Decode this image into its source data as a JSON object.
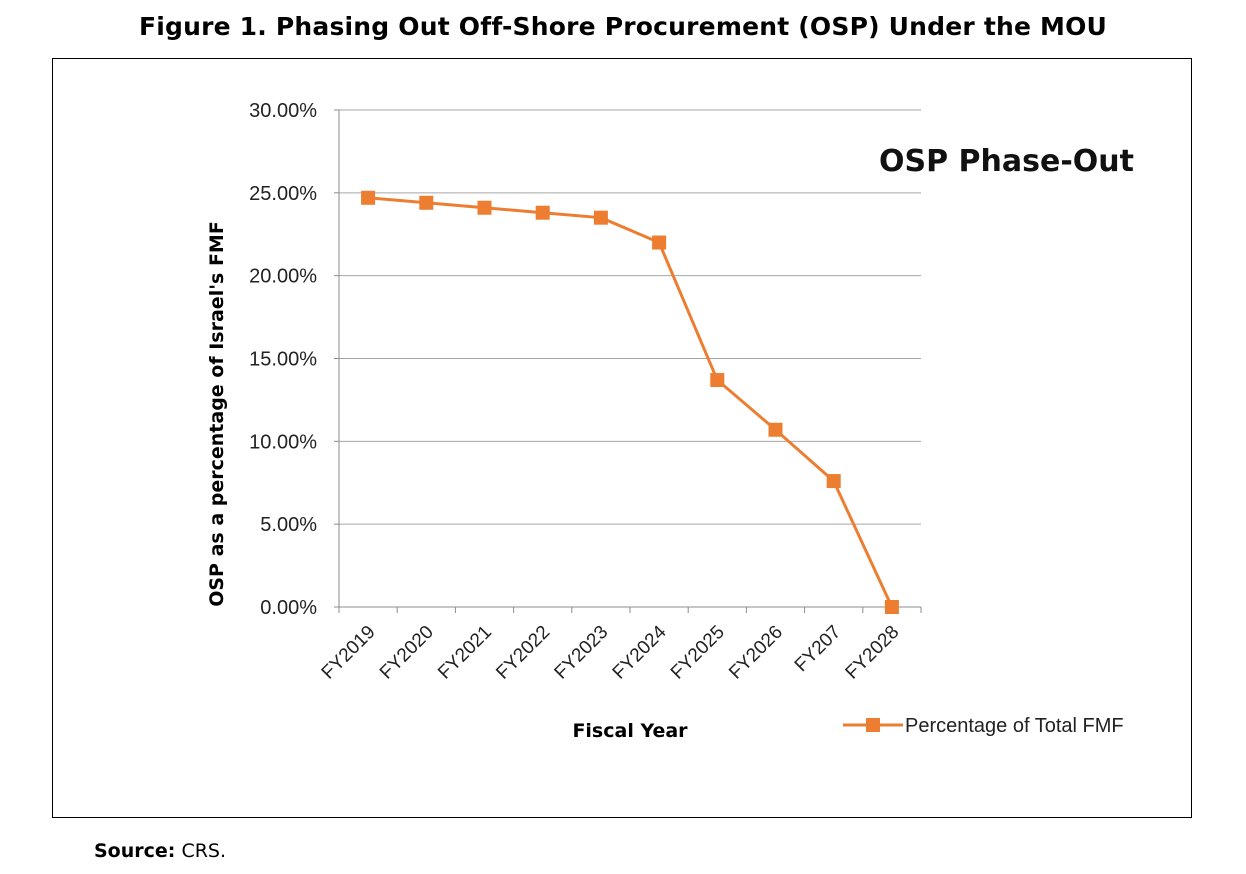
{
  "figure": {
    "title": "Figure 1. Phasing Out Off-Shore Procurement (OSP) Under the MOU"
  },
  "source": {
    "label": "Source:",
    "text": "CRS."
  },
  "chart_data": {
    "type": "line",
    "title": "",
    "annotation": "OSP Phase-Out",
    "xlabel": "Fiscal Year",
    "ylabel": "OSP as a percentage of Israel's FMF",
    "categories": [
      "FY2019",
      "FY2020",
      "FY2021",
      "FY2022",
      "FY2023",
      "FY2024",
      "FY2025",
      "FY2026",
      "FY207",
      "FY2028"
    ],
    "series": [
      {
        "name": "Percentage of Total FMF",
        "color": "#ED7D31",
        "values": [
          24.7,
          24.4,
          24.1,
          23.8,
          23.5,
          22.0,
          13.7,
          10.7,
          7.6,
          0.0
        ]
      }
    ],
    "ylim": [
      0,
      30
    ],
    "yticks": [
      0,
      5,
      10,
      15,
      20,
      25,
      30
    ],
    "ytick_labels": [
      "0.00%",
      "5.00%",
      "10.00%",
      "15.00%",
      "20.00%",
      "25.00%",
      "30.00%"
    ],
    "grid": true,
    "gridline_color": "#A6A6A6",
    "legend_position": "bottom-right"
  }
}
